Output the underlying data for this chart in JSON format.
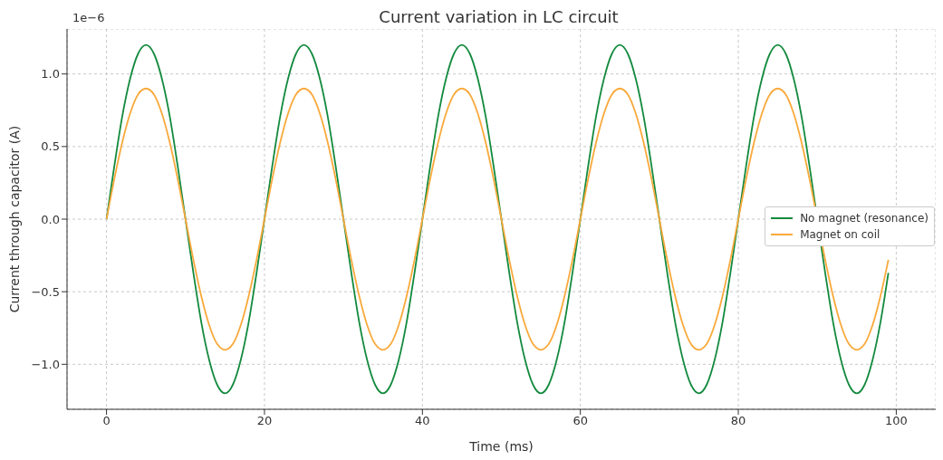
{
  "chart_data": {
    "type": "line",
    "title": "Current variation in LC circuit",
    "xlabel": "Time (ms)",
    "ylabel": "Current through capacitor (A)",
    "annotations": [
      "1e−6"
    ],
    "x": [
      0,
      1,
      2,
      3,
      4,
      5,
      6,
      7,
      8,
      9,
      10,
      11,
      12,
      13,
      14,
      15,
      16,
      17,
      18,
      19,
      20,
      21,
      22,
      23,
      24,
      25,
      26,
      27,
      28,
      29,
      30,
      31,
      32,
      33,
      34,
      35,
      36,
      37,
      38,
      39,
      40,
      41,
      42,
      43,
      44,
      45,
      46,
      47,
      48,
      49,
      50,
      51,
      52,
      53,
      54,
      55,
      56,
      57,
      58,
      59,
      60,
      61,
      62,
      63,
      64,
      65,
      66,
      67,
      68,
      69,
      70,
      71,
      72,
      73,
      74,
      75,
      76,
      77,
      78,
      79,
      80,
      81,
      82,
      83,
      84,
      85,
      86,
      87,
      88,
      89,
      90,
      91,
      92,
      93,
      94,
      95,
      96,
      97,
      98,
      99
    ],
    "series": [
      {
        "name": "No magnet (resonance)",
        "color": "#138a3e",
        "values": [
          0,
          0.37,
          0.71,
          0.97,
          1.14,
          1.2,
          1.14,
          0.97,
          0.71,
          0.37,
          0,
          -0.37,
          -0.71,
          -0.97,
          -1.14,
          -1.2,
          -1.14,
          -0.97,
          -0.71,
          -0.37,
          0,
          0.37,
          0.71,
          0.97,
          1.14,
          1.2,
          1.14,
          0.97,
          0.71,
          0.37,
          0,
          -0.37,
          -0.71,
          -0.97,
          -1.14,
          -1.2,
          -1.14,
          -0.97,
          -0.71,
          -0.37,
          0,
          0.37,
          0.71,
          0.97,
          1.14,
          1.2,
          1.14,
          0.97,
          0.71,
          0.37,
          0,
          -0.37,
          -0.71,
          -0.97,
          -1.14,
          -1.2,
          -1.14,
          -0.97,
          -0.71,
          -0.37,
          0,
          0.37,
          0.71,
          0.97,
          1.14,
          1.2,
          1.14,
          0.97,
          0.71,
          0.37,
          0,
          -0.37,
          -0.71,
          -0.97,
          -1.14,
          -1.2,
          -1.14,
          -0.97,
          -0.71,
          -0.37,
          0,
          0.37,
          0.71,
          0.97,
          1.14,
          1.2,
          1.14,
          0.97,
          0.71,
          0.37,
          null,
          -0.37,
          -0.71,
          -0.97,
          -1.14,
          -1.2,
          -1.14,
          -0.97,
          -0.71,
          -0.37
        ]
      },
      {
        "name": "Magnet on coil",
        "color": "#f9a93b",
        "values": [
          0,
          0.28,
          0.53,
          0.73,
          0.86,
          0.9,
          0.86,
          0.73,
          0.53,
          0.28,
          0,
          -0.28,
          -0.53,
          -0.73,
          -0.86,
          -0.9,
          -0.86,
          -0.73,
          -0.53,
          -0.28,
          0,
          0.28,
          0.53,
          0.73,
          0.86,
          0.9,
          0.86,
          0.73,
          0.53,
          0.28,
          0,
          -0.28,
          -0.53,
          -0.73,
          -0.86,
          -0.9,
          -0.86,
          -0.73,
          -0.53,
          -0.28,
          0,
          0.28,
          0.53,
          0.73,
          0.86,
          0.9,
          0.86,
          0.73,
          0.53,
          0.28,
          0,
          -0.28,
          -0.53,
          -0.73,
          -0.86,
          -0.9,
          -0.86,
          -0.73,
          -0.53,
          -0.28,
          0,
          0.28,
          0.53,
          0.73,
          0.86,
          0.9,
          0.86,
          0.73,
          0.53,
          0.28,
          0,
          -0.28,
          -0.53,
          -0.73,
          -0.86,
          -0.9,
          -0.86,
          -0.73,
          -0.53,
          -0.28,
          0,
          0.28,
          0.53,
          0.73,
          0.86,
          0.9,
          0.86,
          0.73,
          0.53,
          0.28,
          null,
          -0.28,
          -0.53,
          -0.73,
          -0.86,
          -0.9,
          -0.86,
          -0.73,
          -0.53,
          -0.28
        ]
      }
    ],
    "xlim": [
      -5,
      105
    ],
    "xticks": [
      0,
      20,
      40,
      60,
      80,
      100
    ],
    "ylim": [
      -1.31,
      1.31
    ],
    "yticks": [
      {
        "value": -1,
        "label": "−1.0"
      },
      {
        "value": -0.5,
        "label": "−0.5"
      },
      {
        "value": 0,
        "label": "0.0"
      },
      {
        "value": 0.5,
        "label": "0.5"
      },
      {
        "value": 1,
        "label": "1.0"
      }
    ],
    "grid": true,
    "legend": "right"
  }
}
